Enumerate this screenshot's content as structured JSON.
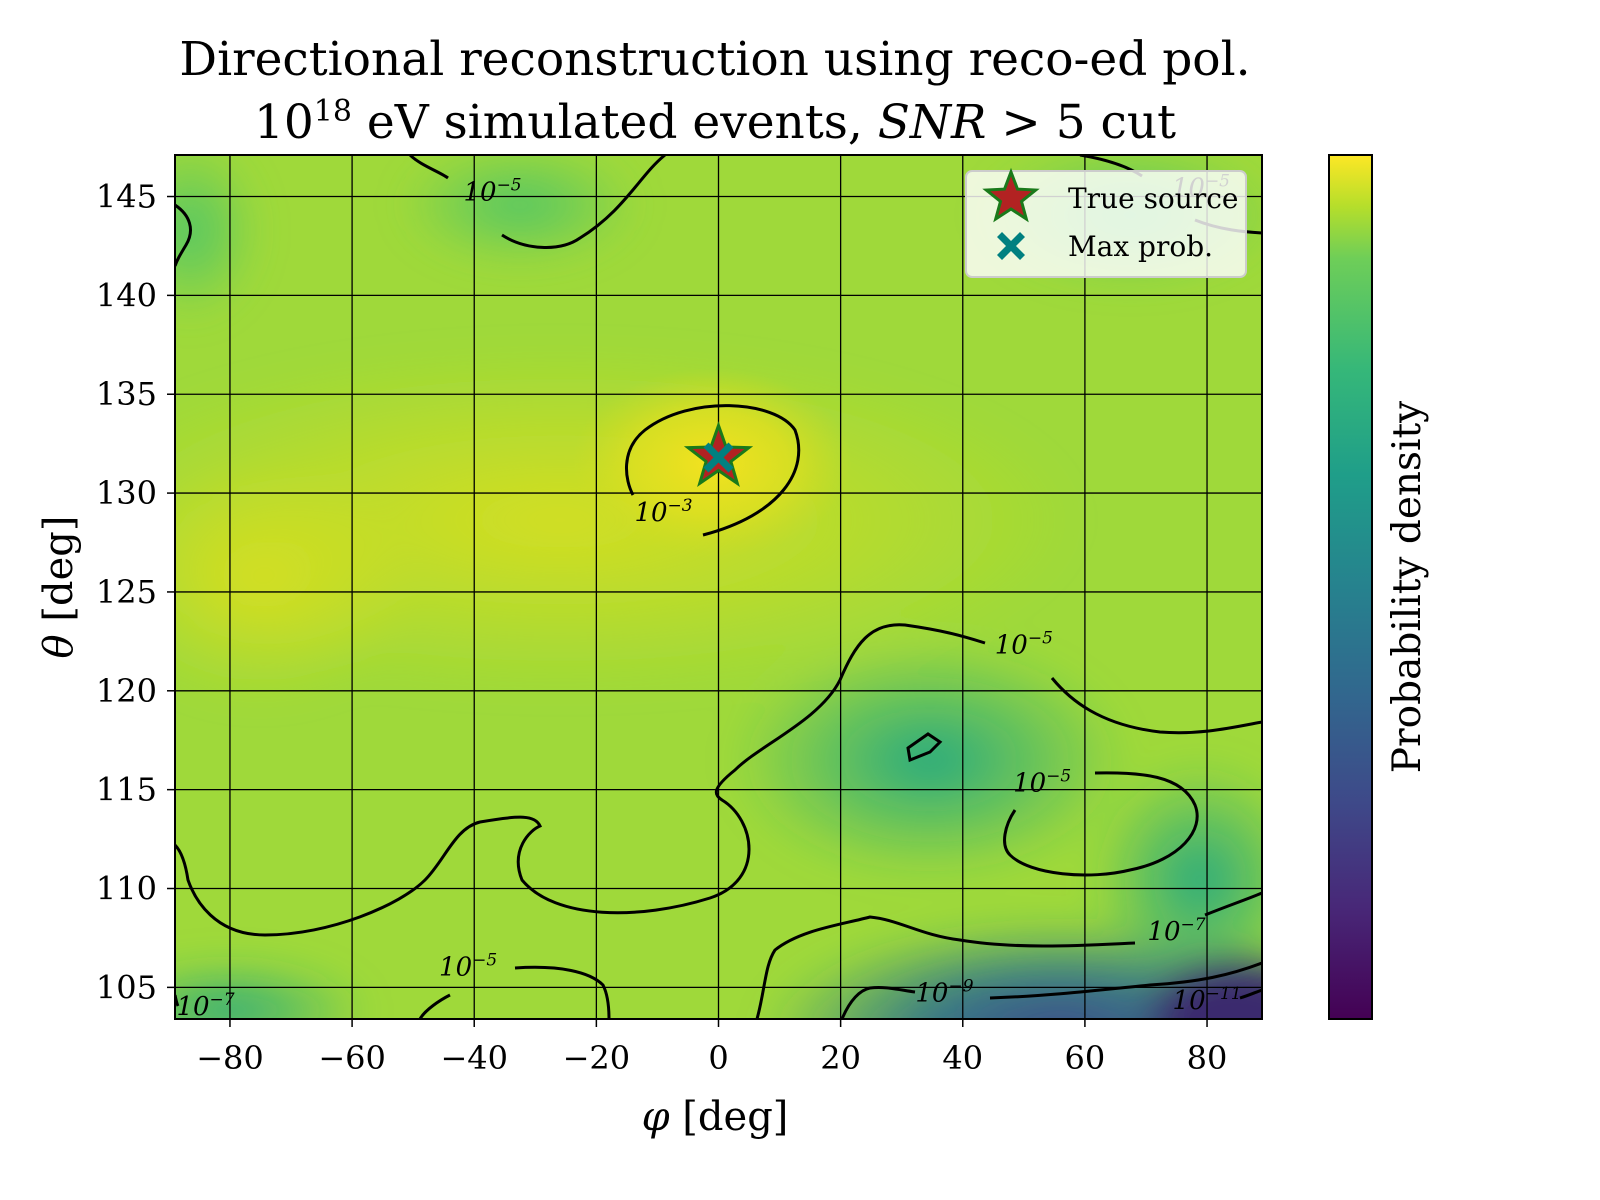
{
  "chart_data": {
    "type": "heatmap",
    "title_line1": "Directional reconstruction using reco-ed pol.",
    "title_line2": {
      "base": "10",
      "exponent": "18",
      "text_a": " eV simulated events, ",
      "math": "SNR",
      "text_b": " > 5 cut"
    },
    "xlabel": {
      "symbol": "φ",
      "unit": " [deg]"
    },
    "ylabel": {
      "symbol": "θ",
      "unit": " [deg]"
    },
    "xlim": [
      -89,
      89
    ],
    "ylim": [
      103.4,
      147.1
    ],
    "xticks": [
      -80,
      -60,
      -40,
      -20,
      0,
      20,
      40,
      60,
      80
    ],
    "xtick_labels": [
      "−80",
      "−60",
      "−40",
      "−20",
      "0",
      "20",
      "40",
      "60",
      "80"
    ],
    "yticks": [
      105,
      110,
      115,
      120,
      125,
      130,
      135,
      140,
      145
    ],
    "ytick_labels": [
      "105",
      "110",
      "115",
      "120",
      "125",
      "130",
      "135",
      "140",
      "145"
    ],
    "grid": true,
    "colormap": "viridis",
    "colorbar_label": "Probability density",
    "true_source": {
      "phi": 0,
      "theta": 131.8,
      "color": "#b22222",
      "edge_color": "#1a7a1a"
    },
    "max_prob": {
      "phi": 0,
      "theta": 131.8,
      "color": "#008080"
    },
    "legend": {
      "position": "top-right",
      "entries": [
        {
          "label": "True source",
          "marker": "star"
        },
        {
          "label": "Max prob.",
          "marker": "x"
        }
      ]
    },
    "contour_levels": [
      {
        "level": "10^-3",
        "labels": [
          {
            "base": "10",
            "exp": "−3",
            "phi": -9,
            "theta": 129.0
          }
        ]
      },
      {
        "level": "10^-5",
        "labels": [
          {
            "base": "10",
            "exp": "−5",
            "phi": -37,
            "theta": 145.2
          },
          {
            "base": "10",
            "exp": "−5",
            "phi": 50,
            "theta": 122.3
          },
          {
            "base": "10",
            "exp": "−5",
            "phi": 53,
            "theta": 115.3
          },
          {
            "base": "10",
            "exp": "−5",
            "phi": -41,
            "theta": 106.0
          },
          {
            "base": "10",
            "exp": "−5",
            "phi": 79,
            "theta": 145.4
          }
        ]
      },
      {
        "level": "10^-7",
        "labels": [
          {
            "base": "10",
            "exp": "−7",
            "phi": 75,
            "theta": 107.8
          },
          {
            "base": "10",
            "exp": "−7",
            "phi": -84,
            "theta": 104.0
          }
        ]
      },
      {
        "level": "10^-9",
        "labels": [
          {
            "base": "10",
            "exp": "−9",
            "phi": 37,
            "theta": 104.7
          }
        ]
      },
      {
        "level": "10^-11",
        "labels": [
          {
            "base": "10",
            "exp": "−11",
            "phi": 80,
            "theta": 104.3
          }
        ]
      }
    ]
  }
}
